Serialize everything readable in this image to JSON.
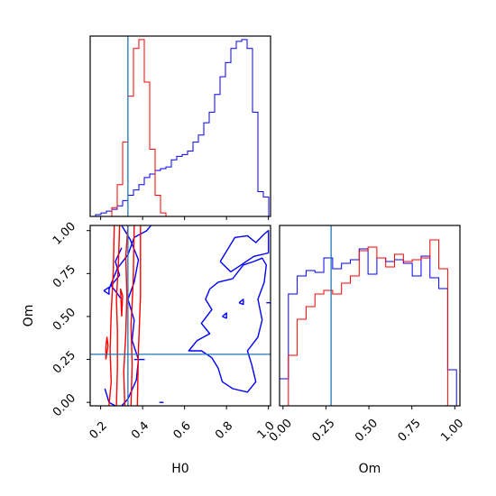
{
  "chart_data": {
    "type": "corner",
    "parameters": [
      "H0",
      "Om"
    ],
    "xlabels": {
      "H0": "H0",
      "Om": "Om"
    },
    "ylabel_left": "Om",
    "truth": {
      "H0": 0.33,
      "Om": 0.28
    },
    "colors": {
      "truth": "#1f77b4",
      "series_blue": "#0000ff",
      "series_red": "#ff0000"
    },
    "ranges": {
      "H0": [
        0.15,
        1.01
      ],
      "Om": [
        -0.02,
        1.03
      ]
    },
    "ticks": {
      "H0": [
        "0.2",
        "0.4",
        "0.6",
        "0.8",
        "1.0"
      ],
      "Om": [
        "0.00",
        "0.25",
        "0.50",
        "0.75",
        "1.00"
      ]
    },
    "hist_H0": {
      "bins": [
        0.15,
        0.1758,
        0.2016,
        0.2274,
        0.2532,
        0.279,
        0.3048,
        0.3306,
        0.3564,
        0.3822,
        0.408,
        0.4338,
        0.4596,
        0.4854,
        0.5112,
        0.537,
        0.5628,
        0.5886,
        0.6144,
        0.6402,
        0.666,
        0.6918,
        0.7176,
        0.7434,
        0.7692,
        0.795,
        0.8208,
        0.8466,
        0.8724,
        0.8982,
        0.924,
        0.9498,
        0.9756,
        1.0014
      ],
      "series": [
        {
          "color": "blue",
          "values": [
            0,
            0.01,
            0.02,
            0.03,
            0.04,
            0.06,
            0.09,
            0.12,
            0.15,
            0.18,
            0.22,
            0.24,
            0.26,
            0.27,
            0.28,
            0.32,
            0.34,
            0.35,
            0.37,
            0.42,
            0.46,
            0.53,
            0.59,
            0.69,
            0.79,
            0.87,
            0.95,
            0.99,
            1.0,
            0.95,
            0.59,
            0.14,
            0.11
          ]
        },
        {
          "color": "red",
          "values": [
            0,
            0,
            0,
            0,
            0.05,
            0.18,
            0.42,
            0.68,
            0.95,
            1.0,
            0.76,
            0.38,
            0.12,
            0.02,
            0,
            0,
            0,
            0,
            0,
            0,
            0,
            0,
            0,
            0,
            0,
            0,
            0,
            0,
            0,
            0,
            0,
            0,
            0
          ]
        }
      ]
    },
    "hist_Om": {
      "bins": [
        -0.02,
        0.0315,
        0.083,
        0.1345,
        0.186,
        0.2375,
        0.289,
        0.3405,
        0.392,
        0.4435,
        0.495,
        0.5465,
        0.598,
        0.6495,
        0.701,
        0.7525,
        0.804,
        0.8555,
        0.907,
        0.9585,
        1.01
      ],
      "series": [
        {
          "color": "blue",
          "values": [
            0.15,
            0.62,
            0.72,
            0.75,
            0.74,
            0.82,
            0.76,
            0.79,
            0.81,
            0.87,
            0.73,
            0.82,
            0.8,
            0.81,
            0.79,
            0.72,
            0.83,
            0.71,
            0.65,
            0.2
          ]
        },
        {
          "color": "red",
          "values": [
            0.0,
            0.28,
            0.48,
            0.55,
            0.62,
            0.64,
            0.62,
            0.68,
            0.72,
            0.86,
            0.88,
            0.82,
            0.77,
            0.84,
            0.8,
            0.81,
            0.82,
            0.92,
            0.76,
            0.0
          ]
        }
      ]
    },
    "contours": {
      "red": [
        [
          [
            0.24,
            -0.02
          ],
          [
            0.25,
            0.12
          ],
          [
            0.245,
            0.3
          ],
          [
            0.25,
            0.52
          ],
          [
            0.26,
            0.76
          ],
          [
            0.265,
            1.03
          ]
        ],
        [
          [
            0.275,
            -0.02
          ],
          [
            0.28,
            0.2
          ],
          [
            0.28,
            0.42
          ],
          [
            0.275,
            0.6
          ],
          [
            0.285,
            0.82
          ],
          [
            0.29,
            1.03
          ]
        ],
        [
          [
            0.315,
            -0.02
          ],
          [
            0.31,
            0.18
          ],
          [
            0.32,
            0.4
          ],
          [
            0.325,
            0.62
          ],
          [
            0.32,
            0.85
          ],
          [
            0.33,
            1.03
          ]
        ],
        [
          [
            0.345,
            -0.02
          ],
          [
            0.35,
            0.22
          ],
          [
            0.345,
            0.45
          ],
          [
            0.355,
            0.7
          ],
          [
            0.36,
            1.03
          ]
        ],
        [
          [
            0.375,
            -0.02
          ],
          [
            0.38,
            0.3
          ],
          [
            0.39,
            0.62
          ],
          [
            0.39,
            1.03
          ]
        ],
        [
          [
            0.225,
            0.25
          ],
          [
            0.235,
            0.33
          ],
          [
            0.23,
            0.38
          ],
          [
            0.225,
            0.32
          ],
          [
            0.225,
            0.25
          ]
        ],
        [
          [
            0.3,
            0.5
          ],
          [
            0.305,
            0.62
          ],
          [
            0.295,
            0.66
          ],
          [
            0.3,
            0.5
          ]
        ]
      ],
      "blue": [
        [
          [
            0.24,
            0.66
          ],
          [
            0.28,
            0.78
          ],
          [
            0.33,
            0.86
          ],
          [
            0.36,
            0.96
          ],
          [
            0.42,
            1.0
          ],
          [
            0.44,
            1.03
          ]
        ],
        [
          [
            0.3,
            1.03
          ],
          [
            0.34,
            0.95
          ],
          [
            0.38,
            0.83
          ],
          [
            0.36,
            0.7
          ],
          [
            0.33,
            0.6
          ],
          [
            0.36,
            0.48
          ],
          [
            0.35,
            0.36
          ],
          [
            0.38,
            0.25
          ],
          [
            0.37,
            0.13
          ],
          [
            0.33,
            0.02
          ],
          [
            0.3,
            -0.02
          ]
        ],
        [
          [
            0.3,
            0.9
          ],
          [
            0.27,
            0.82
          ],
          [
            0.29,
            0.74
          ],
          [
            0.25,
            0.68
          ],
          [
            0.3,
            0.6
          ]
        ],
        [
          [
            0.22,
            0.08
          ],
          [
            0.24,
            0.0
          ],
          [
            0.27,
            -0.02
          ]
        ],
        [
          [
            0.77,
            0.82
          ],
          [
            0.84,
            0.96
          ],
          [
            0.9,
            0.97
          ],
          [
            0.94,
            0.93
          ],
          [
            0.98,
            0.98
          ],
          [
            1.0,
            1.0
          ],
          [
            1.0,
            0.87
          ],
          [
            0.93,
            0.85
          ],
          [
            0.87,
            0.8
          ],
          [
            0.82,
            0.76
          ],
          [
            0.77,
            0.82
          ]
        ],
        [
          [
            0.72,
            0.66
          ],
          [
            0.76,
            0.7
          ],
          [
            0.83,
            0.72
          ],
          [
            0.88,
            0.8
          ],
          [
            0.93,
            0.82
          ],
          [
            0.97,
            0.84
          ],
          [
            0.99,
            0.8
          ],
          [
            0.98,
            0.7
          ],
          [
            0.95,
            0.6
          ],
          [
            0.97,
            0.48
          ],
          [
            0.95,
            0.38
          ],
          [
            0.9,
            0.3
          ],
          [
            0.92,
            0.22
          ],
          [
            0.94,
            0.12
          ],
          [
            0.9,
            0.06
          ],
          [
            0.83,
            0.08
          ],
          [
            0.78,
            0.12
          ],
          [
            0.76,
            0.2
          ],
          [
            0.73,
            0.26
          ],
          [
            0.68,
            0.3
          ],
          [
            0.62,
            0.3
          ],
          [
            0.66,
            0.36
          ],
          [
            0.72,
            0.4
          ],
          [
            0.68,
            0.46
          ],
          [
            0.73,
            0.54
          ],
          [
            0.7,
            0.6
          ],
          [
            0.72,
            0.66
          ]
        ],
        [
          [
            0.86,
            0.58
          ],
          [
            0.88,
            0.6
          ],
          [
            0.88,
            0.57
          ],
          [
            0.86,
            0.58
          ]
        ],
        [
          [
            0.78,
            0.5
          ],
          [
            0.8,
            0.52
          ],
          [
            0.8,
            0.49
          ],
          [
            0.78,
            0.5
          ]
        ],
        [
          [
            0.215,
            0.65
          ],
          [
            0.24,
            0.67
          ],
          [
            0.24,
            0.63
          ],
          [
            0.215,
            0.65
          ]
        ],
        [
          [
            0.99,
            0.58
          ],
          [
            1.01,
            0.58
          ]
        ],
        [
          [
            0.41,
            0.25
          ],
          [
            0.36,
            0.25
          ]
        ],
        [
          [
            0.48,
            0.0
          ],
          [
            0.5,
            0.0
          ]
        ]
      ]
    }
  }
}
